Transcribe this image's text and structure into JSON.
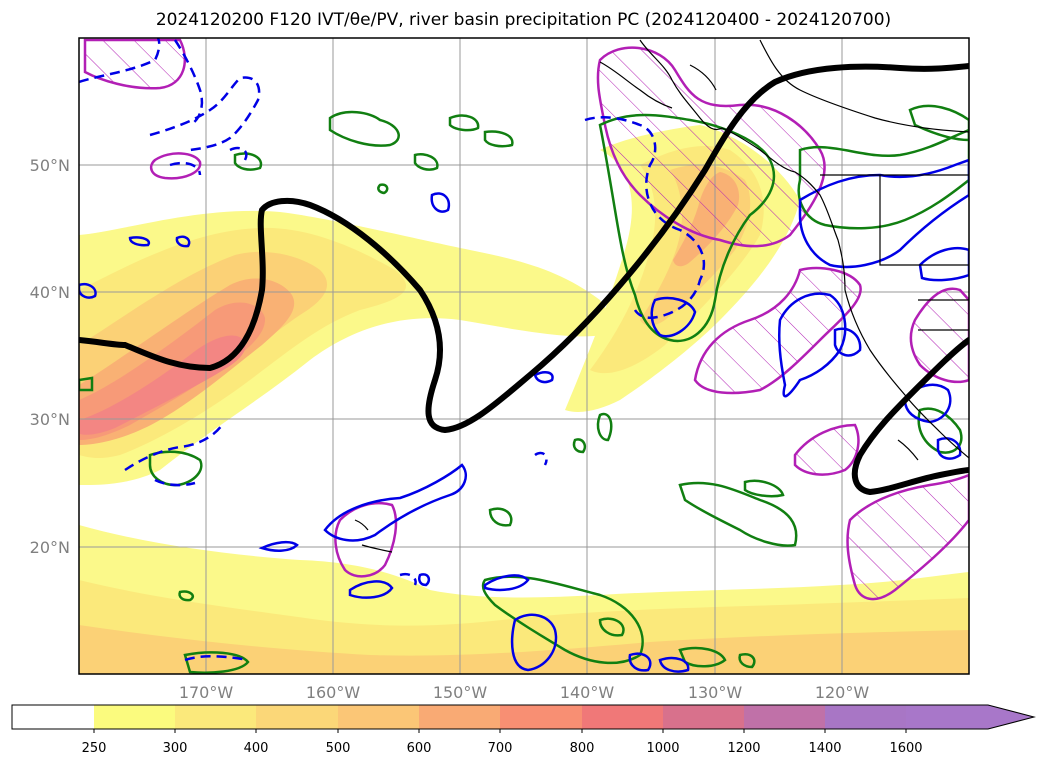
{
  "title": "2024120200 F120 IVT/θe/PV, river basin precipitation PC (2024120400 - 2024120700)",
  "map": {
    "latitude_labels": [
      "50°N",
      "40°N",
      "30°N",
      "20°N"
    ],
    "longitude_labels": [
      "170°W",
      "160°W",
      "150°W",
      "140°W",
      "130°W",
      "120°W"
    ],
    "colors": {
      "ivt_fill_low": "#fbf98a",
      "ivt_fill_mid": "#fcd37a",
      "ivt_fill_high": "#f88880",
      "thick_contour": "#000000",
      "hatch_magenta": "#b21fb5",
      "pv_blue": "#0000e6",
      "green_contour": "#117f11",
      "coastline": "#000000",
      "frame": "#000000"
    }
  },
  "colorbar": {
    "labels": [
      "250",
      "300",
      "400",
      "500",
      "600",
      "700",
      "800",
      "1000",
      "1200",
      "1400",
      "1600"
    ],
    "colors": [
      "#ffffff",
      "#fbfb7e",
      "#fbe97b",
      "#fbd778",
      "#fbc676",
      "#f9aa74",
      "#f88f73",
      "#f07878",
      "#d8718c",
      "#c071a8",
      "#a876c5"
    ],
    "extend_color": "#a877c9"
  }
}
